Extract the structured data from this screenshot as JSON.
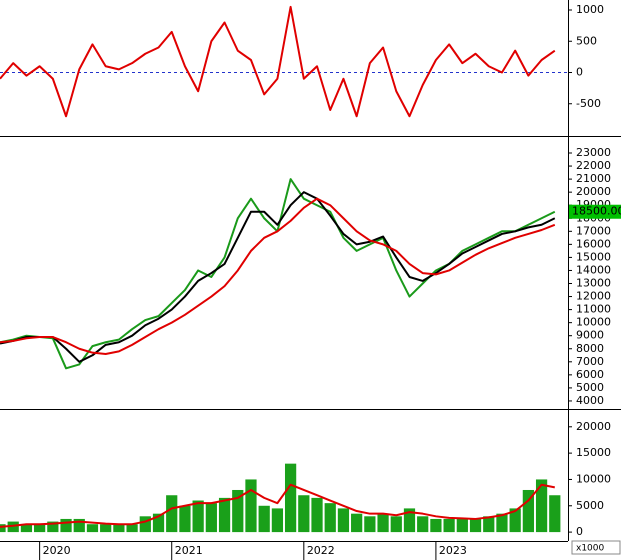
{
  "chart_data": [
    {
      "type": "line",
      "x": [
        2019.7,
        2019.8,
        2019.9,
        2020.0,
        2020.1,
        2020.2,
        2020.3,
        2020.4,
        2020.5,
        2020.6,
        2020.7,
        2020.8,
        2020.9,
        2021.0,
        2021.1,
        2021.2,
        2021.3,
        2021.4,
        2021.5,
        2021.6,
        2021.7,
        2021.8,
        2021.9,
        2022.0,
        2022.1,
        2022.2,
        2022.3,
        2022.4,
        2022.5,
        2022.6,
        2022.7,
        2022.8,
        2022.9,
        2023.0,
        2023.1,
        2023.2,
        2023.3,
        2023.4,
        2023.5,
        2023.6,
        2023.7,
        2023.8,
        2023.9
      ],
      "xlim": [
        2019.7,
        2024.0
      ],
      "ylim": [
        -1000,
        1160
      ],
      "yticks": [
        1000,
        500,
        0,
        -500
      ],
      "hline": 0,
      "hline_color": "#2233cc",
      "series": [
        {
          "color": "#e00000",
          "values": [
            -100,
            150,
            -50,
            100,
            -100,
            -700,
            50,
            450,
            100,
            50,
            150,
            300,
            400,
            650,
            100,
            -300,
            500,
            800,
            350,
            200,
            -350,
            -100,
            1050,
            -100,
            100,
            -600,
            -100,
            -700,
            150,
            400,
            -300,
            -700,
            -200,
            200,
            450,
            150,
            300,
            100,
            0,
            350,
            -50,
            200,
            350
          ]
        }
      ]
    },
    {
      "type": "line",
      "x": [
        2019.7,
        2019.8,
        2019.9,
        2020.0,
        2020.1,
        2020.2,
        2020.3,
        2020.4,
        2020.5,
        2020.6,
        2020.7,
        2020.8,
        2020.9,
        2021.0,
        2021.1,
        2021.2,
        2021.3,
        2021.4,
        2021.5,
        2021.6,
        2021.7,
        2021.8,
        2021.9,
        2022.0,
        2022.1,
        2022.2,
        2022.3,
        2022.4,
        2022.5,
        2022.6,
        2022.7,
        2022.8,
        2022.9,
        2023.0,
        2023.1,
        2023.2,
        2023.3,
        2023.4,
        2023.5,
        2023.6,
        2023.7,
        2023.8,
        2023.9
      ],
      "xlim": [
        2019.7,
        2024.0
      ],
      "ylim": [
        3460,
        24150
      ],
      "yticks": [
        4000,
        5000,
        6000,
        7000,
        8000,
        9000,
        10000,
        11000,
        12000,
        13000,
        14000,
        15000,
        16000,
        17000,
        18000,
        19000,
        20000,
        21000,
        22000,
        23000
      ],
      "series": [
        {
          "color": "#1a9a1a",
          "values": [
            8500,
            8700,
            9000,
            8900,
            8800,
            6500,
            6800,
            8200,
            8500,
            8700,
            9500,
            10200,
            10500,
            11500,
            12500,
            14000,
            13500,
            15000,
            18000,
            19500,
            18000,
            17000,
            21000,
            19500,
            19000,
            18500,
            16500,
            15500,
            16000,
            16500,
            14000,
            12000,
            13000,
            14000,
            14500,
            15500,
            16000,
            16500,
            17000,
            17000,
            17500,
            18000,
            18500
          ],
          "value_labels": [
            null,
            null,
            null,
            null,
            null,
            null,
            null,
            null,
            null,
            null,
            null,
            null,
            null,
            null,
            null,
            null,
            null,
            null,
            null,
            null,
            null,
            null,
            null,
            null,
            null,
            null,
            null,
            null,
            null,
            null,
            null,
            null,
            null,
            null,
            null,
            null,
            null,
            null,
            null,
            null,
            null,
            null,
            "18500.00"
          ]
        },
        {
          "color": "#000000",
          "values": [
            8400,
            8600,
            8900,
            8900,
            8900,
            8000,
            7000,
            7500,
            8300,
            8500,
            9000,
            9800,
            10300,
            11000,
            12000,
            13200,
            13800,
            14500,
            16500,
            18500,
            18500,
            17500,
            19000,
            20000,
            19500,
            18200,
            16800,
            16000,
            16200,
            16600,
            15000,
            13500,
            13200,
            13800,
            14500,
            15300,
            15800,
            16300,
            16800,
            17000,
            17300,
            17500,
            18000
          ]
        },
        {
          "color": "#e00000",
          "values": [
            8500,
            8600,
            8800,
            8900,
            8900,
            8500,
            8000,
            7700,
            7600,
            7800,
            8300,
            8900,
            9500,
            10000,
            10600,
            11300,
            12000,
            12800,
            14000,
            15500,
            16500,
            17000,
            17800,
            18800,
            19500,
            19000,
            18000,
            17000,
            16300,
            16000,
            15500,
            14500,
            13800,
            13700,
            14000,
            14600,
            15200,
            15700,
            16100,
            16500,
            16800,
            17100,
            17500
          ]
        }
      ]
    },
    {
      "type": "bar",
      "x": [
        2019.7,
        2019.8,
        2019.9,
        2020.0,
        2020.1,
        2020.2,
        2020.3,
        2020.4,
        2020.5,
        2020.6,
        2020.7,
        2020.8,
        2020.9,
        2021.0,
        2021.1,
        2021.2,
        2021.3,
        2021.4,
        2021.5,
        2021.6,
        2021.7,
        2021.8,
        2021.9,
        2022.0,
        2022.1,
        2022.2,
        2022.3,
        2022.4,
        2022.5,
        2022.6,
        2022.7,
        2022.8,
        2022.9,
        2023.0,
        2023.1,
        2023.2,
        2023.3,
        2023.4,
        2023.5,
        2023.6,
        2023.7,
        2023.8,
        2023.9
      ],
      "xlim": [
        2019.7,
        2024.0
      ],
      "xticks": [
        2020,
        2021,
        2022,
        2023
      ],
      "ylim": [
        -1500,
        23000
      ],
      "yticks": [
        20000,
        15000,
        10000,
        5000,
        0
      ],
      "ylabel": "x1000",
      "series": [
        {
          "type": "bar",
          "color": "#1aa01a",
          "values": [
            1500,
            2000,
            1500,
            1500,
            2000,
            2500,
            2500,
            1500,
            1500,
            1500,
            1500,
            3000,
            3500,
            7000,
            5000,
            6000,
            5500,
            6500,
            8000,
            10000,
            5000,
            4500,
            13000,
            7000,
            6500,
            5500,
            4500,
            3500,
            3000,
            3500,
            3000,
            4500,
            3000,
            2500,
            2500,
            2500,
            2500,
            3000,
            3500,
            4500,
            8000,
            10000,
            7000
          ]
        },
        {
          "type": "line",
          "color": "#e00000",
          "values": [
            1000,
            1200,
            1500,
            1500,
            1600,
            1800,
            2000,
            1800,
            1600,
            1500,
            1500,
            2000,
            3000,
            4500,
            5000,
            5500,
            5500,
            6000,
            6500,
            8000,
            6500,
            5500,
            9000,
            8000,
            7000,
            6000,
            5000,
            4000,
            3500,
            3500,
            3200,
            3800,
            3500,
            3000,
            2700,
            2600,
            2500,
            2800,
            3200,
            4000,
            6000,
            9000,
            8500
          ]
        }
      ]
    }
  ]
}
